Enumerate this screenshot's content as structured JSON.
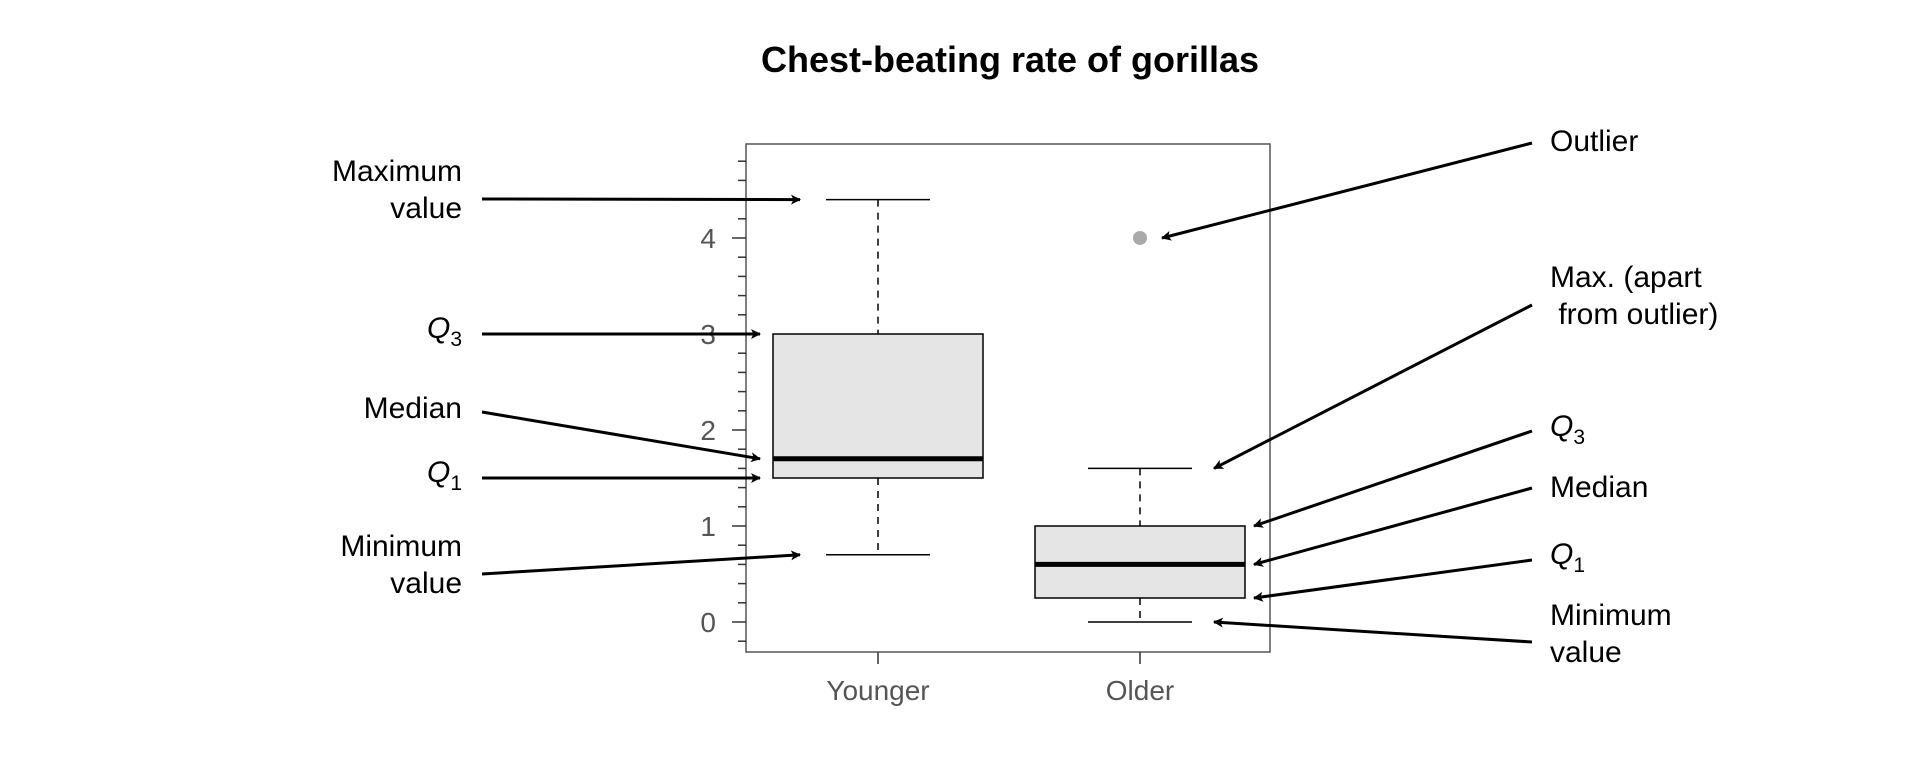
{
  "chart_data": {
    "type": "box",
    "title": "Chest-beating rate of gorillas",
    "xlabel": "",
    "ylabel": "",
    "categories": [
      "Younger",
      "Older"
    ],
    "ylim": [
      -0.3,
      5.0
    ],
    "y_ticks": [
      0,
      1,
      2,
      3,
      4
    ],
    "y_minor_step": 0.2,
    "grid": false,
    "box_fill": "#e5e5e5",
    "outlier_color": "#aaaaaa",
    "boxes": [
      {
        "name": "Younger",
        "min": 0.7,
        "q1": 1.5,
        "median": 1.7,
        "q3": 3.0,
        "max": 4.4,
        "outliers": []
      },
      {
        "name": "Older",
        "min": 0.0,
        "q1": 0.25,
        "median": 0.6,
        "q3": 1.0,
        "max": 1.6,
        "outliers": [
          4.0
        ]
      }
    ]
  },
  "annotations": {
    "left": [
      {
        "id": "max",
        "lines": [
          "Maximum",
          "value"
        ]
      },
      {
        "id": "q3",
        "letter": "Q",
        "sub": "3"
      },
      {
        "id": "median",
        "lines": [
          "Median"
        ]
      },
      {
        "id": "q1",
        "letter": "Q",
        "sub": "1"
      },
      {
        "id": "min",
        "lines": [
          "Minimum",
          "value"
        ]
      }
    ],
    "right": [
      {
        "id": "outlier",
        "lines": [
          "Outlier"
        ]
      },
      {
        "id": "max-apart",
        "lines": [
          "Max. (apart",
          " from outlier)"
        ]
      },
      {
        "id": "q3",
        "letter": "Q",
        "sub": "3"
      },
      {
        "id": "median",
        "lines": [
          "Median"
        ]
      },
      {
        "id": "q1",
        "letter": "Q",
        "sub": "1"
      },
      {
        "id": "min",
        "lines": [
          "Minimum",
          "value"
        ]
      }
    ]
  }
}
